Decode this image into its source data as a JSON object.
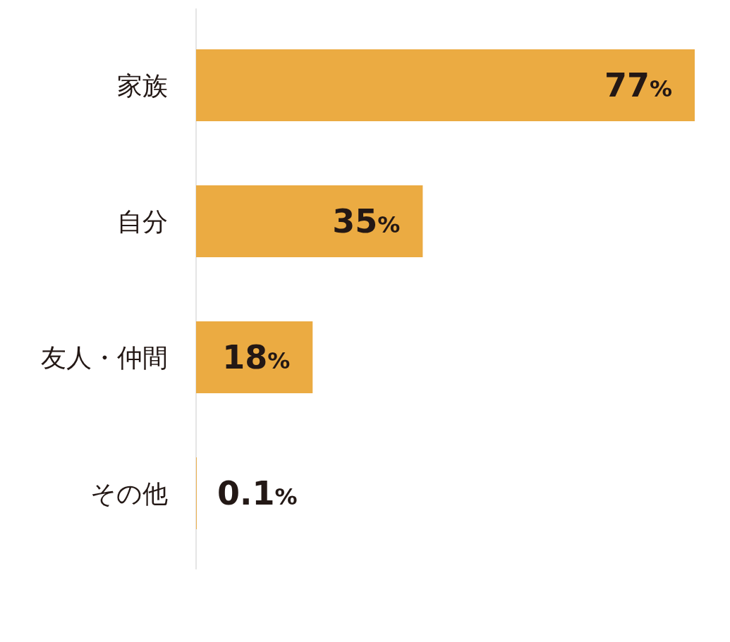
{
  "chart_data": {
    "type": "bar",
    "orientation": "horizontal",
    "categories": [
      "家族",
      "自分",
      "友人・仲間",
      "その他"
    ],
    "values": [
      77,
      35,
      18,
      0.1
    ],
    "value_labels": [
      "77%",
      "35%",
      "18%",
      "0.1%"
    ],
    "color": "#ebab42"
  }
}
